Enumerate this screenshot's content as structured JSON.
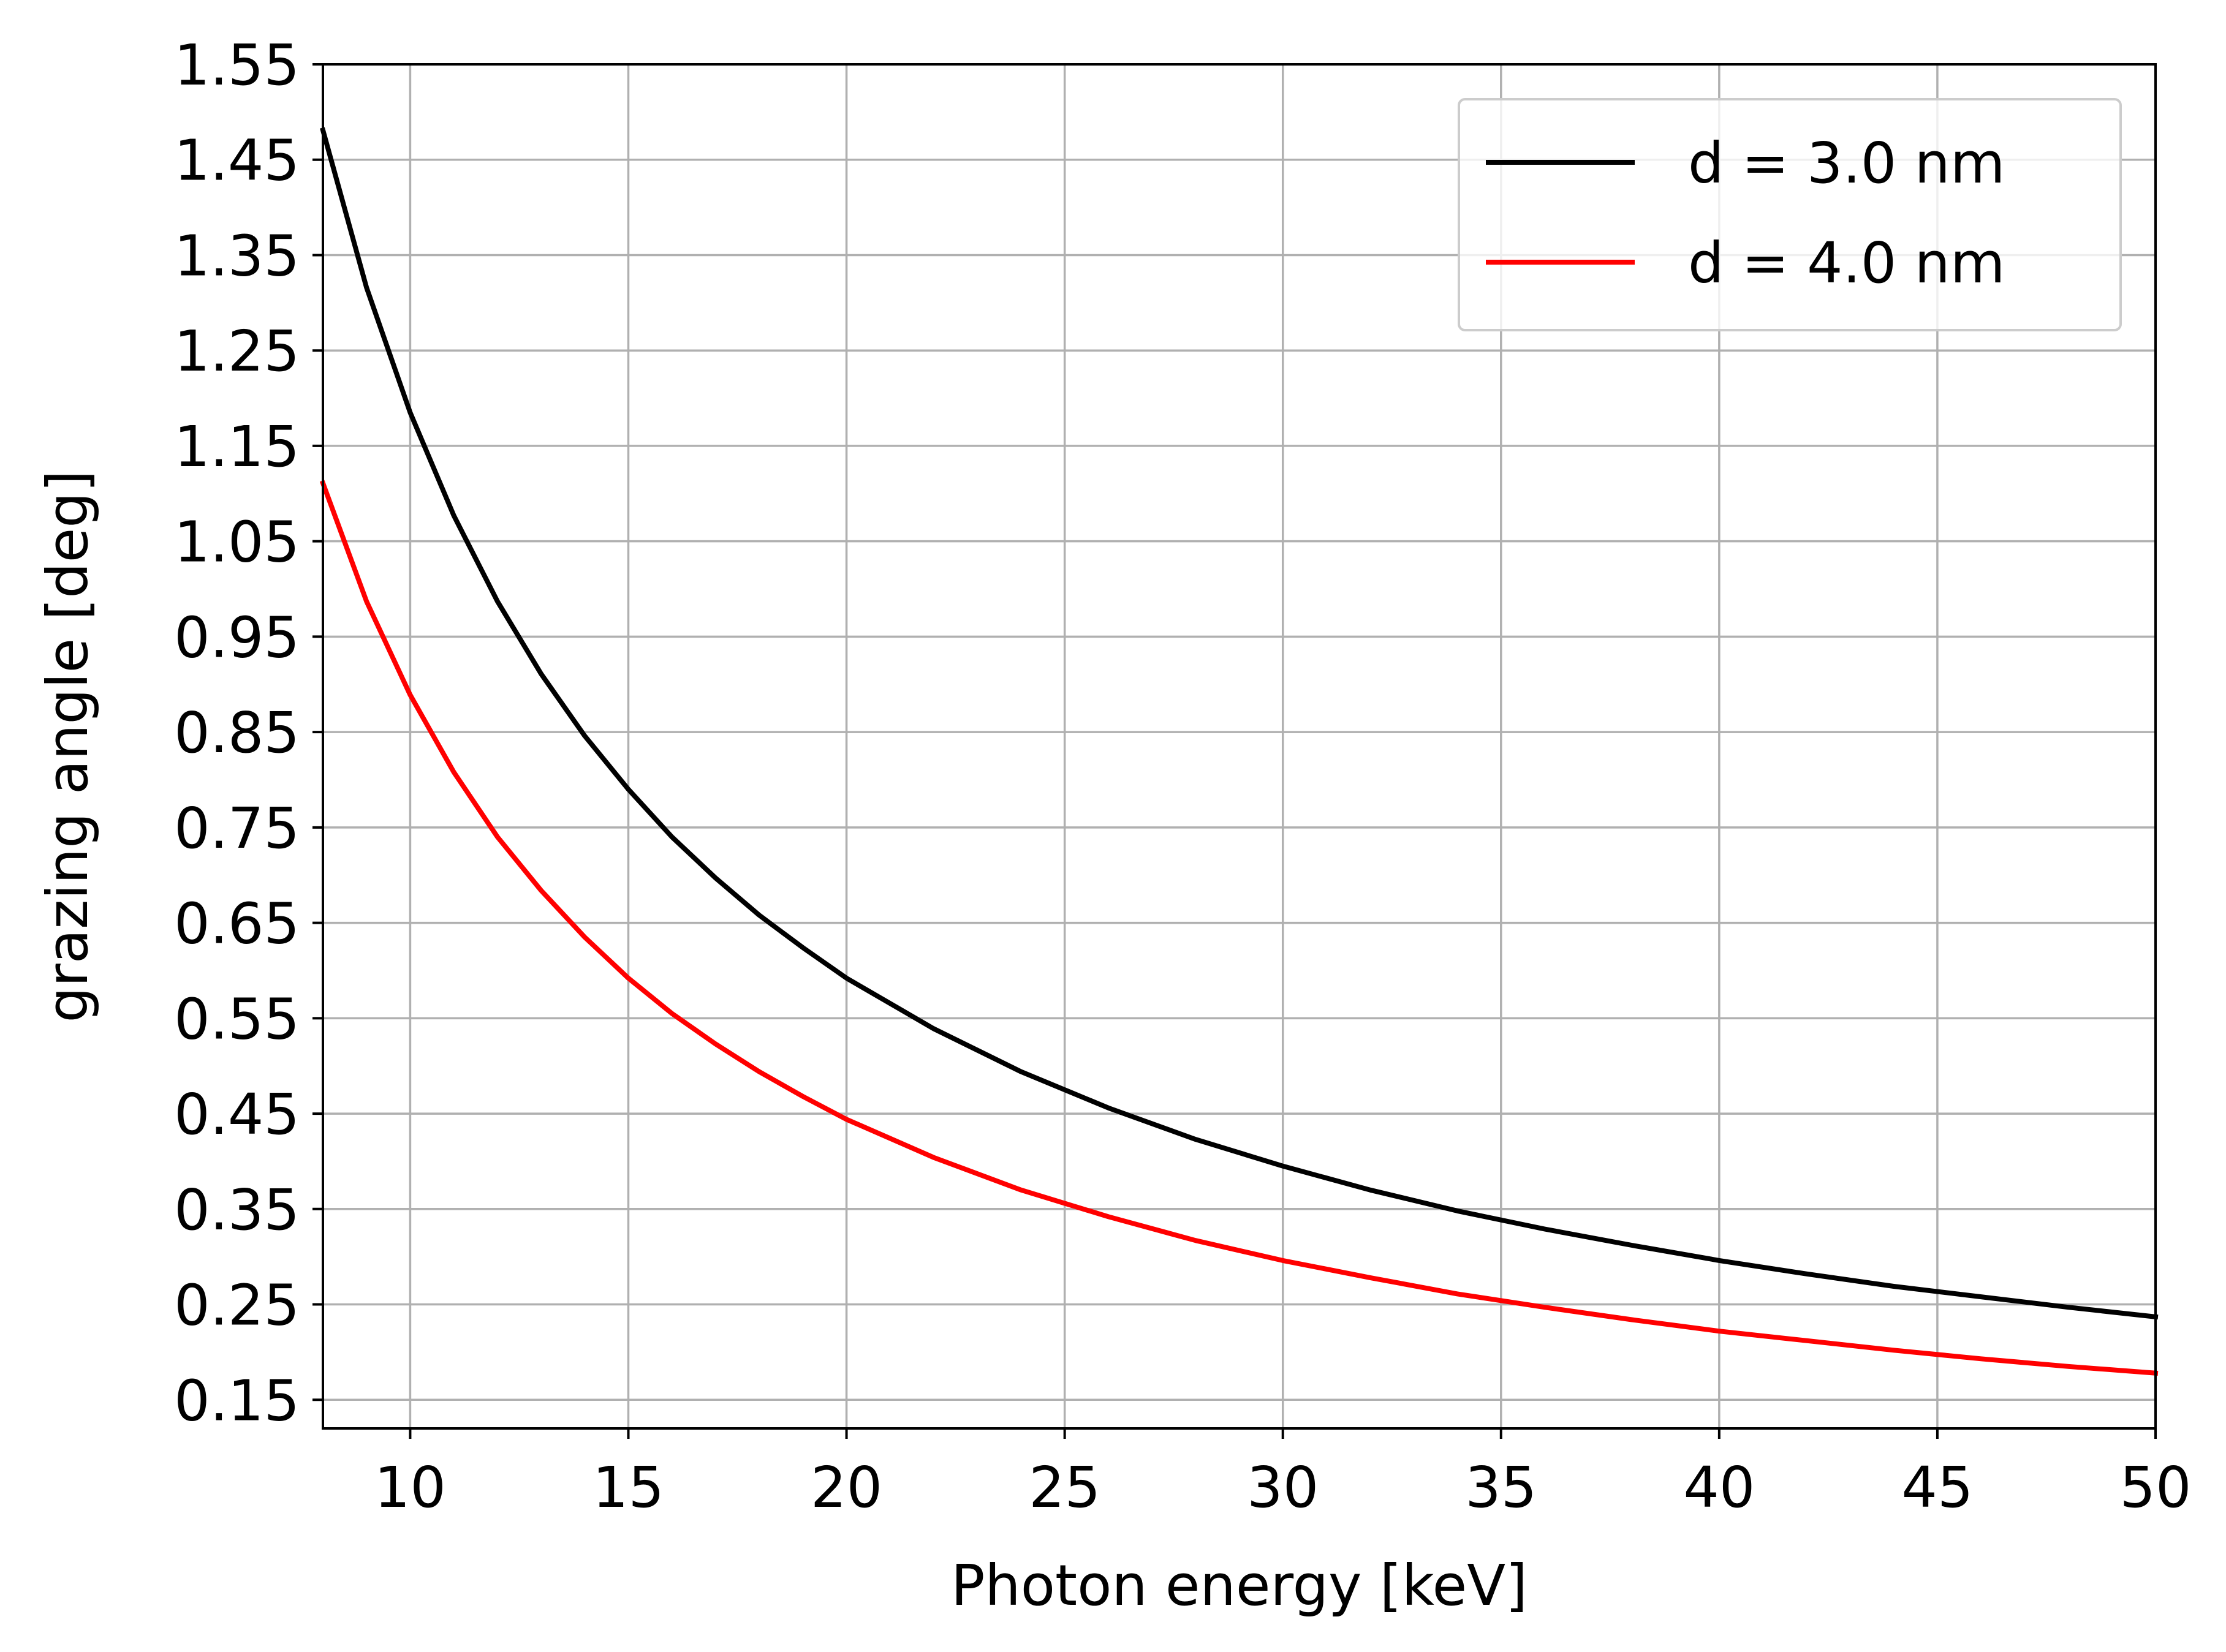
{
  "chart_data": {
    "type": "line",
    "title": "",
    "xlabel": "Photon energy [keV]",
    "ylabel": "grazing angle [deg]",
    "xlim": [
      8,
      50
    ],
    "ylim": [
      0.12,
      1.55
    ],
    "xticks": [
      10,
      15,
      20,
      25,
      30,
      35,
      40,
      45,
      50
    ],
    "xtick_labels": [
      "10",
      "15",
      "20",
      "25",
      "30",
      "35",
      "40",
      "45",
      "50"
    ],
    "yticks": [
      0.15,
      0.25,
      0.35,
      0.45,
      0.55,
      0.65,
      0.75,
      0.85,
      0.95,
      1.05,
      1.15,
      1.25,
      1.35,
      1.45,
      1.55
    ],
    "ytick_labels": [
      "0.15",
      "0.25",
      "0.35",
      "0.45",
      "0.55",
      "0.65",
      "0.75",
      "0.85",
      "0.95",
      "1.05",
      "1.15",
      "1.25",
      "1.35",
      "1.45",
      "1.55"
    ],
    "grid": true,
    "legend_position": "top-right",
    "x": [
      8,
      9,
      10,
      11,
      12,
      13,
      14,
      15,
      16,
      17,
      18,
      19,
      20,
      22,
      24,
      26,
      28,
      30,
      32,
      34,
      36,
      38,
      40,
      42,
      44,
      46,
      48,
      50
    ],
    "series": [
      {
        "name": "d = 3.0 nm",
        "color": "#000000",
        "values": [
          1.481,
          1.316,
          1.185,
          1.077,
          0.987,
          0.911,
          0.846,
          0.79,
          0.74,
          0.697,
          0.658,
          0.624,
          0.592,
          0.539,
          0.494,
          0.456,
          0.423,
          0.395,
          0.37,
          0.348,
          0.329,
          0.312,
          0.296,
          0.282,
          0.269,
          0.258,
          0.247,
          0.237
        ]
      },
      {
        "name": "d = 4.0 nm",
        "color": "#ff0000",
        "values": [
          1.111,
          0.987,
          0.889,
          0.808,
          0.74,
          0.684,
          0.635,
          0.592,
          0.555,
          0.523,
          0.494,
          0.468,
          0.444,
          0.404,
          0.37,
          0.342,
          0.317,
          0.296,
          0.278,
          0.261,
          0.247,
          0.234,
          0.222,
          0.212,
          0.202,
          0.193,
          0.185,
          0.178
        ]
      }
    ]
  }
}
